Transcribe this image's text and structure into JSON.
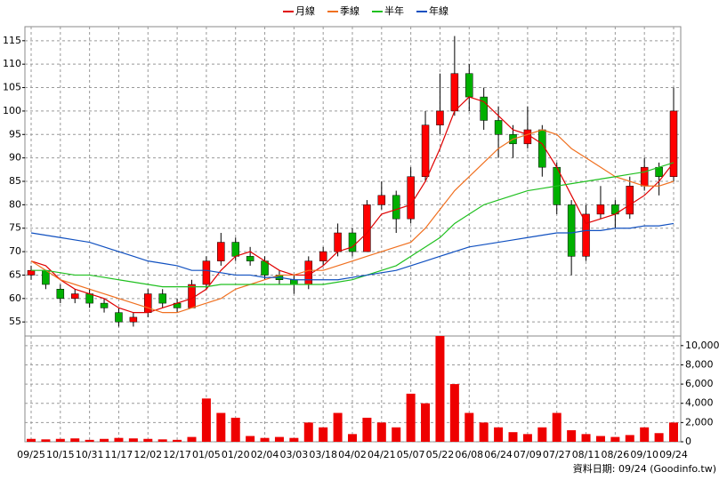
{
  "chart_data": [
    {
      "type": "candlestick",
      "categories": [
        "09/25",
        null,
        "10/15",
        null,
        "10/31",
        null,
        "11/17",
        null,
        "12/02",
        null,
        "12/17",
        null,
        "01/05",
        null,
        "01/20",
        null,
        "02/04",
        null,
        "03/03",
        null,
        "03/18",
        null,
        "04/02",
        null,
        "04/21",
        null,
        "05/07",
        null,
        "05/22",
        null,
        "06/08",
        null,
        "06/24",
        null,
        "07/09",
        null,
        "07/27",
        null,
        "08/11",
        null,
        "08/26",
        null,
        "09/10",
        null,
        "09/24"
      ],
      "open": [
        65,
        66,
        62,
        60,
        61,
        59,
        57,
        55,
        57,
        61,
        59,
        58,
        63,
        68,
        72,
        69,
        68,
        65,
        64,
        63,
        68,
        70,
        74,
        70,
        80,
        82,
        77,
        86,
        97,
        100,
        108,
        103,
        98,
        95,
        93,
        96,
        88,
        80,
        69,
        78,
        80,
        78,
        84,
        88,
        86
      ],
      "high": [
        67,
        66,
        63,
        62,
        62,
        60,
        58,
        57,
        62,
        62,
        60,
        64,
        69,
        74,
        73,
        71,
        69,
        66,
        65,
        69,
        71,
        76,
        75,
        81,
        85,
        83,
        88,
        100,
        108,
        116,
        110,
        105,
        101,
        97,
        101,
        97,
        89,
        81,
        80,
        84,
        81,
        86,
        90,
        89,
        105
      ],
      "low": [
        64,
        62,
        59,
        59,
        58,
        57,
        54,
        54,
        56,
        58,
        57,
        58,
        62,
        67,
        68,
        67,
        64,
        63,
        61,
        62,
        67,
        69,
        69,
        70,
        79,
        74,
        76,
        85,
        95,
        99,
        100,
        96,
        90,
        90,
        92,
        86,
        78,
        65,
        68,
        77,
        75,
        77,
        83,
        82,
        85
      ],
      "close": [
        66,
        63,
        60,
        61,
        59,
        58,
        55,
        56,
        61,
        59,
        58,
        63,
        68,
        72,
        69,
        68,
        65,
        64,
        63,
        68,
        70,
        74,
        70,
        80,
        82,
        77,
        86,
        97,
        100,
        108,
        103,
        98,
        95,
        93,
        96,
        88,
        80,
        69,
        78,
        80,
        78,
        84,
        88,
        86,
        100
      ],
      "up_color": "#ff0000",
      "down_color": "#00b000",
      "series": [
        {
          "name": "月線",
          "color": "#e00000",
          "values": [
            68,
            67,
            64,
            62,
            61,
            60,
            58,
            57,
            57,
            58,
            59,
            60,
            62,
            66,
            69,
            70,
            68,
            66,
            65,
            65,
            67,
            70,
            71,
            74,
            78,
            79,
            80,
            85,
            92,
            100,
            103,
            102,
            99,
            96,
            95,
            93,
            88,
            82,
            76,
            77,
            78,
            80,
            82,
            85,
            89
          ]
        },
        {
          "name": "季線",
          "color": "#f07020",
          "values": [
            68,
            66,
            64,
            63,
            62,
            61,
            60,
            59,
            58,
            57,
            57,
            58,
            59,
            60,
            62,
            63,
            64,
            65,
            65,
            66,
            66,
            67,
            68,
            69,
            70,
            71,
            72,
            75,
            79,
            83,
            86,
            89,
            92,
            94,
            95,
            96,
            95,
            92,
            90,
            88,
            86,
            85,
            84,
            84,
            85
          ]
        },
        {
          "name": "半年",
          "color": "#20c020",
          "values": [
            66,
            66,
            65.5,
            65,
            65,
            64.5,
            64,
            63.5,
            63,
            62.5,
            62.5,
            62.5,
            62.5,
            63,
            63,
            63,
            63,
            63,
            63,
            63,
            63,
            63.5,
            64,
            65,
            66,
            67,
            69,
            71,
            73,
            76,
            78,
            80,
            81,
            82,
            83,
            83.5,
            84,
            84.5,
            85,
            85.5,
            86,
            86.5,
            87,
            88,
            89
          ]
        },
        {
          "name": "年線",
          "color": "#1050c0",
          "values": [
            74,
            73.5,
            73,
            72.5,
            72,
            71,
            70,
            69,
            68,
            67.5,
            67,
            66,
            66,
            65.5,
            65,
            65,
            64.5,
            64.5,
            64,
            64,
            64,
            64,
            64.5,
            65,
            65.5,
            66,
            67,
            68,
            69,
            70,
            71,
            71.5,
            72,
            72.5,
            73,
            73.5,
            74,
            74,
            74.5,
            74.5,
            75,
            75,
            75.5,
            75.5,
            76
          ]
        }
      ],
      "ylim": [
        52,
        118
      ],
      "yticks": [
        55,
        60,
        65,
        70,
        75,
        80,
        85,
        90,
        95,
        100,
        105,
        110,
        115
      ],
      "grid": true,
      "legend": "top"
    },
    {
      "type": "bar",
      "color": "#ee0000",
      "values": [
        300,
        250,
        300,
        350,
        200,
        300,
        400,
        350,
        300,
        250,
        200,
        500,
        4500,
        3000,
        2500,
        600,
        400,
        500,
        400,
        2000,
        1500,
        3000,
        800,
        2500,
        2000,
        1500,
        5000,
        4000,
        11000,
        6000,
        3000,
        2000,
        1500,
        1000,
        800,
        1500,
        3000,
        1200,
        800,
        600,
        500,
        700,
        1500,
        900,
        2000
      ],
      "ylim": [
        0,
        11000
      ],
      "yticks": [
        0,
        {
          "value": 2000,
          "label": "2,000"
        },
        {
          "value": 4000,
          "label": "4,000"
        },
        {
          "value": 6000,
          "label": "6,000"
        },
        {
          "value": 8000,
          "label": "8,000"
        },
        {
          "value": 10000,
          "label": "10,000"
        }
      ],
      "grid": true,
      "footnote": "資料日期: 09/24  (Goodinfo.tw)"
    }
  ]
}
